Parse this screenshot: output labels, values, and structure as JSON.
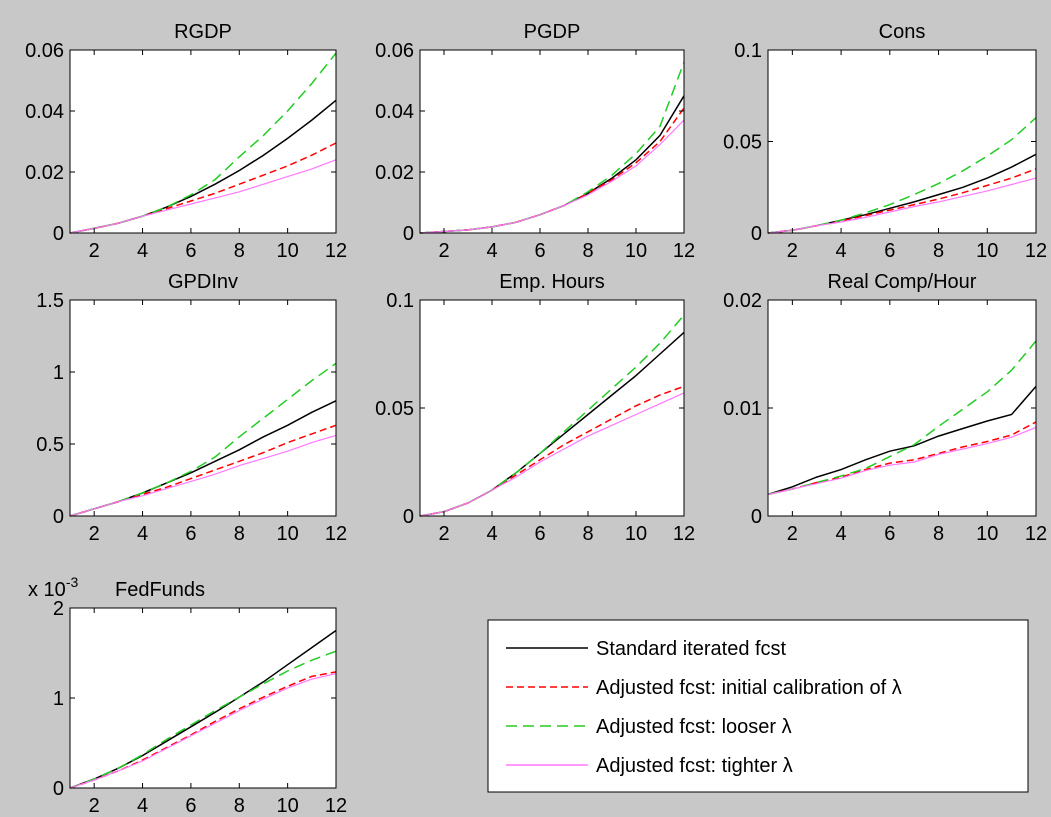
{
  "figure": {
    "background": "#c8c8c8",
    "series_styles": [
      {
        "key": "standard",
        "label": "Standard iterated fcst",
        "color": "#000000",
        "dash": ""
      },
      {
        "key": "initial",
        "label": "Adjusted fcst: initial calibration of λ",
        "color": "#ff0000",
        "dash": "7 4"
      },
      {
        "key": "looser",
        "label": "Adjusted fcst: looser λ",
        "color": "#22cc22",
        "dash": "11 6"
      },
      {
        "key": "tighter",
        "label": "Adjusted fcst: tighter λ",
        "color": "#ff77ff",
        "dash": ""
      }
    ],
    "legend_location": "bottom-right"
  },
  "chart_data": [
    {
      "type": "line",
      "title": "RGDP",
      "x": [
        1,
        2,
        3,
        4,
        5,
        6,
        7,
        8,
        9,
        10,
        11,
        12
      ],
      "xlim": [
        1,
        12
      ],
      "ylim": [
        0,
        0.06
      ],
      "xticks": [
        2,
        4,
        6,
        8,
        10,
        12
      ],
      "yticks": [
        0,
        0.02,
        0.04,
        0.06
      ],
      "ytick_labels": [
        "0",
        "0.02",
        "0.04",
        "0.06"
      ],
      "series": [
        {
          "key": "standard",
          "values": [
            0.0,
            0.0015,
            0.0032,
            0.0055,
            0.0085,
            0.012,
            0.016,
            0.0205,
            0.0255,
            0.031,
            0.037,
            0.0435
          ]
        },
        {
          "key": "initial",
          "values": [
            0.0,
            0.0015,
            0.0032,
            0.0055,
            0.008,
            0.0105,
            0.013,
            0.016,
            0.019,
            0.022,
            0.0255,
            0.0295
          ]
        },
        {
          "key": "looser",
          "values": [
            0.0,
            0.0015,
            0.0032,
            0.0055,
            0.0085,
            0.0125,
            0.0175,
            0.025,
            0.032,
            0.04,
            0.049,
            0.059
          ]
        },
        {
          "key": "tighter",
          "values": [
            0.0,
            0.0015,
            0.0032,
            0.0055,
            0.0075,
            0.0095,
            0.0115,
            0.0135,
            0.016,
            0.0185,
            0.021,
            0.024
          ]
        }
      ]
    },
    {
      "type": "line",
      "title": "PGDP",
      "x": [
        1,
        2,
        3,
        4,
        5,
        6,
        7,
        8,
        9,
        10,
        11,
        12
      ],
      "xlim": [
        1,
        12
      ],
      "ylim": [
        0,
        0.06
      ],
      "xticks": [
        2,
        4,
        6,
        8,
        10,
        12
      ],
      "yticks": [
        0,
        0.02,
        0.04,
        0.06
      ],
      "ytick_labels": [
        "0",
        "0.02",
        "0.04",
        "0.06"
      ],
      "series": [
        {
          "key": "standard",
          "values": [
            0.0,
            0.0005,
            0.001,
            0.002,
            0.0035,
            0.006,
            0.009,
            0.013,
            0.018,
            0.024,
            0.032,
            0.045
          ]
        },
        {
          "key": "initial",
          "values": [
            0.0,
            0.0005,
            0.001,
            0.002,
            0.0035,
            0.006,
            0.009,
            0.013,
            0.0175,
            0.023,
            0.03,
            0.041
          ]
        },
        {
          "key": "looser",
          "values": [
            0.0,
            0.0005,
            0.001,
            0.002,
            0.0035,
            0.006,
            0.009,
            0.0135,
            0.019,
            0.026,
            0.035,
            0.056
          ]
        },
        {
          "key": "tighter",
          "values": [
            0.0,
            0.0005,
            0.001,
            0.002,
            0.0035,
            0.006,
            0.009,
            0.0125,
            0.017,
            0.022,
            0.029,
            0.037
          ]
        }
      ]
    },
    {
      "type": "line",
      "title": "Cons",
      "x": [
        1,
        2,
        3,
        4,
        5,
        6,
        7,
        8,
        9,
        10,
        11,
        12
      ],
      "xlim": [
        1,
        12
      ],
      "ylim": [
        0,
        0.1
      ],
      "xticks": [
        2,
        4,
        6,
        8,
        10,
        12
      ],
      "yticks": [
        0,
        0.05,
        0.1
      ],
      "ytick_labels": [
        "0",
        "0.05",
        "0.1"
      ],
      "series": [
        {
          "key": "standard",
          "values": [
            0.0,
            0.0015,
            0.004,
            0.007,
            0.01,
            0.0135,
            0.017,
            0.021,
            0.025,
            0.03,
            0.036,
            0.043
          ]
        },
        {
          "key": "initial",
          "values": [
            0.0,
            0.0015,
            0.004,
            0.0065,
            0.0095,
            0.0125,
            0.0155,
            0.0185,
            0.022,
            0.026,
            0.03,
            0.035
          ]
        },
        {
          "key": "looser",
          "values": [
            0.0,
            0.0015,
            0.004,
            0.007,
            0.011,
            0.0155,
            0.021,
            0.027,
            0.034,
            0.042,
            0.051,
            0.063
          ]
        },
        {
          "key": "tighter",
          "values": [
            0.0,
            0.0015,
            0.004,
            0.006,
            0.0085,
            0.0115,
            0.0145,
            0.017,
            0.02,
            0.023,
            0.0265,
            0.03
          ]
        }
      ]
    },
    {
      "type": "line",
      "title": "GPDInv",
      "x": [
        1,
        2,
        3,
        4,
        5,
        6,
        7,
        8,
        9,
        10,
        11,
        12
      ],
      "xlim": [
        1,
        12
      ],
      "ylim": [
        0,
        1.5
      ],
      "xticks": [
        2,
        4,
        6,
        8,
        10,
        12
      ],
      "yticks": [
        0,
        0.5,
        1,
        1.5
      ],
      "ytick_labels": [
        "0",
        "0.5",
        "1",
        "1.5"
      ],
      "series": [
        {
          "key": "standard",
          "values": [
            0.0,
            0.05,
            0.1,
            0.16,
            0.23,
            0.3,
            0.38,
            0.46,
            0.55,
            0.63,
            0.72,
            0.8
          ]
        },
        {
          "key": "initial",
          "values": [
            0.0,
            0.05,
            0.1,
            0.15,
            0.2,
            0.26,
            0.32,
            0.38,
            0.44,
            0.51,
            0.57,
            0.63
          ]
        },
        {
          "key": "looser",
          "values": [
            0.0,
            0.05,
            0.1,
            0.16,
            0.23,
            0.31,
            0.41,
            0.55,
            0.68,
            0.81,
            0.94,
            1.06
          ]
        },
        {
          "key": "tighter",
          "values": [
            0.0,
            0.05,
            0.1,
            0.14,
            0.19,
            0.24,
            0.29,
            0.35,
            0.4,
            0.45,
            0.51,
            0.56
          ]
        }
      ]
    },
    {
      "type": "line",
      "title": "Emp. Hours",
      "x": [
        1,
        2,
        3,
        4,
        5,
        6,
        7,
        8,
        9,
        10,
        11,
        12
      ],
      "xlim": [
        1,
        12
      ],
      "ylim": [
        0,
        0.1
      ],
      "xticks": [
        2,
        4,
        6,
        8,
        10,
        12
      ],
      "yticks": [
        0,
        0.05,
        0.1
      ],
      "ytick_labels": [
        "0",
        "0.05",
        "0.1"
      ],
      "series": [
        {
          "key": "standard",
          "values": [
            0.0,
            0.002,
            0.006,
            0.012,
            0.02,
            0.029,
            0.038,
            0.047,
            0.056,
            0.065,
            0.075,
            0.085
          ]
        },
        {
          "key": "initial",
          "values": [
            0.0,
            0.002,
            0.006,
            0.012,
            0.019,
            0.026,
            0.033,
            0.039,
            0.045,
            0.051,
            0.056,
            0.06
          ]
        },
        {
          "key": "looser",
          "values": [
            0.0,
            0.002,
            0.006,
            0.012,
            0.02,
            0.029,
            0.039,
            0.049,
            0.059,
            0.069,
            0.08,
            0.093
          ]
        },
        {
          "key": "tighter",
          "values": [
            0.0,
            0.002,
            0.006,
            0.012,
            0.018,
            0.025,
            0.031,
            0.037,
            0.042,
            0.047,
            0.052,
            0.057
          ]
        }
      ]
    },
    {
      "type": "line",
      "title": "Real Comp/Hour",
      "x": [
        1,
        2,
        3,
        4,
        5,
        6,
        7,
        8,
        9,
        10,
        11,
        12
      ],
      "xlim": [
        1,
        12
      ],
      "ylim": [
        0,
        0.02
      ],
      "xticks": [
        2,
        4,
        6,
        8,
        10,
        12
      ],
      "yticks": [
        0,
        0.01,
        0.02
      ],
      "ytick_labels": [
        "0",
        "0.01",
        "0.02"
      ],
      "series": [
        {
          "key": "standard",
          "values": [
            0.002,
            0.0027,
            0.0036,
            0.0043,
            0.0052,
            0.006,
            0.0065,
            0.0074,
            0.0081,
            0.0088,
            0.0094,
            0.012
          ]
        },
        {
          "key": "initial",
          "values": [
            0.002,
            0.0025,
            0.0031,
            0.0036,
            0.0043,
            0.0049,
            0.0052,
            0.0058,
            0.0064,
            0.0069,
            0.0075,
            0.0087
          ]
        },
        {
          "key": "looser",
          "values": [
            0.002,
            0.0025,
            0.0031,
            0.0037,
            0.0044,
            0.0055,
            0.0066,
            0.0083,
            0.0099,
            0.0115,
            0.0135,
            0.0162
          ]
        },
        {
          "key": "tighter",
          "values": [
            0.002,
            0.0025,
            0.003,
            0.0035,
            0.0042,
            0.0047,
            0.005,
            0.0057,
            0.0062,
            0.0067,
            0.0073,
            0.0082
          ]
        }
      ]
    },
    {
      "type": "line",
      "title": "FedFunds",
      "y_multiplier": "x 10",
      "y_multiplier_exponent": "-3",
      "x": [
        1,
        2,
        3,
        4,
        5,
        6,
        7,
        8,
        9,
        10,
        11,
        12
      ],
      "xlim": [
        1,
        12
      ],
      "ylim": [
        0,
        2
      ],
      "xticks": [
        2,
        4,
        6,
        8,
        10,
        12
      ],
      "yticks": [
        0,
        1,
        2
      ],
      "ytick_labels": [
        "0",
        "1",
        "2"
      ],
      "series": [
        {
          "key": "standard",
          "values": [
            0.0,
            0.1,
            0.22,
            0.36,
            0.52,
            0.68,
            0.84,
            1.01,
            1.18,
            1.37,
            1.56,
            1.75
          ]
        },
        {
          "key": "initial",
          "values": [
            0.0,
            0.09,
            0.19,
            0.31,
            0.45,
            0.59,
            0.74,
            0.88,
            1.01,
            1.13,
            1.24,
            1.29
          ]
        },
        {
          "key": "looser",
          "values": [
            0.0,
            0.1,
            0.22,
            0.37,
            0.54,
            0.7,
            0.86,
            1.01,
            1.16,
            1.3,
            1.42,
            1.52
          ]
        },
        {
          "key": "tighter",
          "values": [
            0.0,
            0.09,
            0.19,
            0.3,
            0.44,
            0.58,
            0.72,
            0.86,
            0.99,
            1.11,
            1.21,
            1.27
          ]
        }
      ]
    }
  ]
}
